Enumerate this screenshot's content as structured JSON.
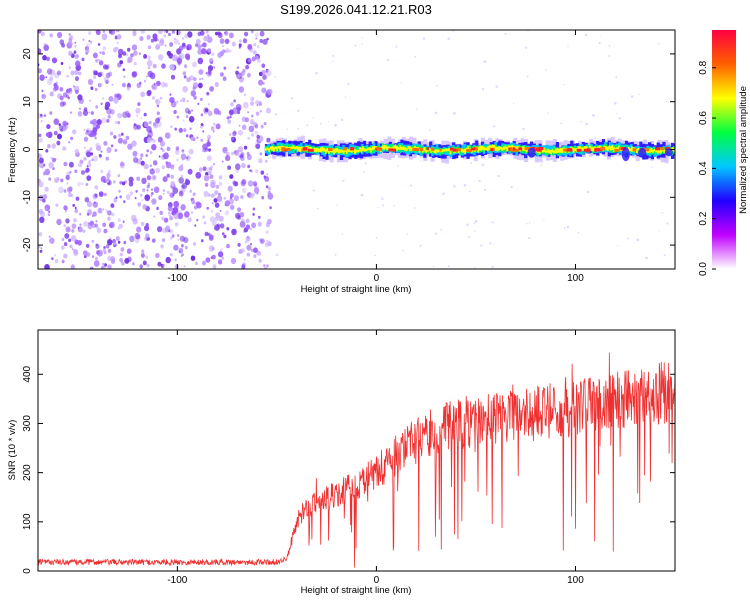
{
  "title": "S199.2026.041.12.21.R03",
  "chart_data": [
    {
      "type": "heatmap",
      "title": "S199.2026.041.12.21.R03",
      "xlabel": "Height of straight line (km)",
      "ylabel": "Frequency (Hz)",
      "xlim": [
        -170,
        150
      ],
      "ylim": [
        -25,
        25
      ],
      "xticks": [
        -100,
        0,
        100
      ],
      "yticks": [
        -20,
        -10,
        0,
        10,
        20
      ],
      "noise_region_x": [
        -170,
        -53
      ],
      "signal_region_x": [
        -56,
        150
      ],
      "signal_frequency_hz": 0,
      "colorbar": {
        "label": "Normalized spectral amplitude",
        "range": [
          0,
          0.95
        ],
        "ticks": [
          0.0,
          0.2,
          0.4,
          0.6,
          0.8
        ],
        "colors": [
          "#ffffff",
          "#c000ff",
          "#2000ff",
          "#00c8ff",
          "#00ff40",
          "#ffff00",
          "#ff6000",
          "#ff0040"
        ]
      }
    },
    {
      "type": "line",
      "xlabel": "Height of straight line (km)",
      "ylabel": "SNR (10 * v/v)",
      "xlim": [
        -170,
        150
      ],
      "ylim": [
        0,
        490
      ],
      "xticks": [
        -100,
        0,
        100
      ],
      "yticks": [
        0,
        100,
        200,
        300,
        400
      ],
      "color": "#f03030",
      "series": [
        {
          "name": "SNR",
          "x": [
            -170,
            -150,
            -120,
            -100,
            -80,
            -60,
            -50,
            -45,
            -40,
            -35,
            -30,
            -20,
            -10,
            0,
            10,
            20,
            30,
            40,
            50,
            60,
            70,
            80,
            90,
            100,
            110,
            120,
            130,
            140,
            150
          ],
          "values": [
            18,
            18,
            18,
            18,
            18,
            18,
            18,
            25,
            100,
            130,
            140,
            155,
            175,
            200,
            235,
            265,
            285,
            300,
            305,
            310,
            315,
            320,
            325,
            330,
            340,
            345,
            355,
            360,
            365
          ]
        }
      ]
    }
  ]
}
